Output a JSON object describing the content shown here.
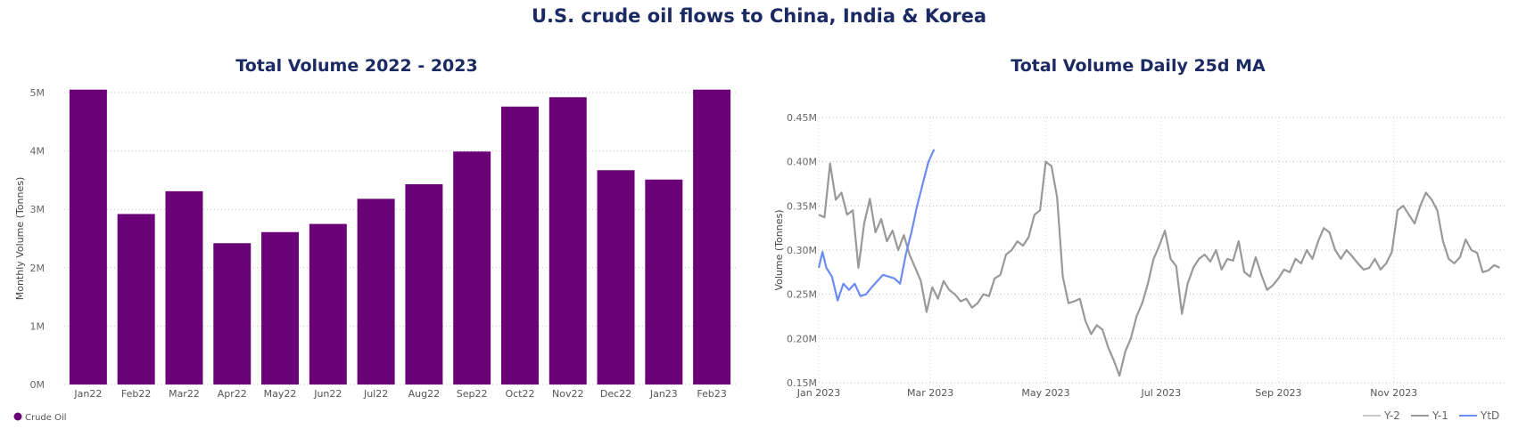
{
  "header": {
    "title": "U.S. crude oil flows to China, India & Korea"
  },
  "chart_data": [
    {
      "type": "bar",
      "title": "Total Volume 2022 - 2023",
      "ylabel": "Monthly Volume (Tonnes)",
      "xlabel": "",
      "categories": [
        "Jan22",
        "Feb22",
        "Mar22",
        "Apr22",
        "May22",
        "Jun22",
        "Jul22",
        "Aug22",
        "Sep22",
        "Oct22",
        "Nov22",
        "Dec22",
        "Jan23",
        "Feb23"
      ],
      "series": [
        {
          "name": "Crude Oil",
          "values": [
            5050000,
            2920000,
            3310000,
            2420000,
            2610000,
            2750000,
            3180000,
            3430000,
            3990000,
            4760000,
            4920000,
            3670000,
            3510000,
            5050000
          ]
        }
      ],
      "ylim": [
        0,
        5000000
      ],
      "yticks": [
        0,
        1000000,
        2000000,
        3000000,
        4000000,
        5000000
      ],
      "ytick_labels": [
        "0M",
        "1M",
        "2M",
        "3M",
        "4M",
        "5M"
      ],
      "grid": true,
      "legend": "bottom-left",
      "colors": {
        "Crude Oil": "#6a0177"
      }
    },
    {
      "type": "line",
      "title": "Total Volume Daily 25d MA",
      "ylabel": "Volume (Tonnes)",
      "xlabel": "",
      "ylim": [
        0.15,
        0.45
      ],
      "yticks": [
        0.15,
        0.2,
        0.25,
        0.3,
        0.35,
        0.4,
        0.45
      ],
      "ytick_labels": [
        "0.15M",
        "0.20M",
        "0.25M",
        "0.30M",
        "0.35M",
        "0.40M",
        "0.45M"
      ],
      "xlim": [
        "2023-01-01",
        "2023-12-31"
      ],
      "xticks": [
        "2023-01-01",
        "2023-03-01",
        "2023-05-01",
        "2023-07-01",
        "2023-09-01",
        "2023-11-01"
      ],
      "xtick_labels": [
        "Jan 2023",
        "Mar 2023",
        "May 2023",
        "Jul 2023",
        "Sep 2023",
        "Nov 2023"
      ],
      "grid": true,
      "legend": "bottom-right",
      "legend_entries": [
        "Y-2",
        "Y-1",
        "YtD"
      ],
      "colors": {
        "Y-2": "#c8c8c8",
        "Y-1": "#999999",
        "YtD": "#6b8cf2"
      },
      "series": [
        {
          "name": "Y-2",
          "points": []
        },
        {
          "name": "Y-1",
          "points": [
            [
              "2023-01-01",
              0.34
            ],
            [
              "2023-01-04",
              0.337
            ],
            [
              "2023-01-07",
              0.398
            ],
            [
              "2023-01-10",
              0.357
            ],
            [
              "2023-01-13",
              0.365
            ],
            [
              "2023-01-16",
              0.34
            ],
            [
              "2023-01-19",
              0.345
            ],
            [
              "2023-01-22",
              0.28
            ],
            [
              "2023-01-25",
              0.33
            ],
            [
              "2023-01-28",
              0.358
            ],
            [
              "2023-01-31",
              0.32
            ],
            [
              "2023-02-03",
              0.335
            ],
            [
              "2023-02-06",
              0.31
            ],
            [
              "2023-02-09",
              0.322
            ],
            [
              "2023-02-12",
              0.3
            ],
            [
              "2023-02-15",
              0.317
            ],
            [
              "2023-02-18",
              0.295
            ],
            [
              "2023-02-21",
              0.28
            ],
            [
              "2023-02-24",
              0.265
            ],
            [
              "2023-02-27",
              0.23
            ],
            [
              "2023-03-02",
              0.258
            ],
            [
              "2023-03-05",
              0.245
            ],
            [
              "2023-03-08",
              0.265
            ],
            [
              "2023-03-11",
              0.255
            ],
            [
              "2023-03-14",
              0.25
            ],
            [
              "2023-03-17",
              0.242
            ],
            [
              "2023-03-20",
              0.245
            ],
            [
              "2023-03-23",
              0.235
            ],
            [
              "2023-03-26",
              0.24
            ],
            [
              "2023-03-29",
              0.25
            ],
            [
              "2023-04-01",
              0.248
            ],
            [
              "2023-04-04",
              0.268
            ],
            [
              "2023-04-07",
              0.272
            ],
            [
              "2023-04-10",
              0.295
            ],
            [
              "2023-04-13",
              0.3
            ],
            [
              "2023-04-16",
              0.31
            ],
            [
              "2023-04-19",
              0.305
            ],
            [
              "2023-04-22",
              0.315
            ],
            [
              "2023-04-25",
              0.34
            ],
            [
              "2023-04-28",
              0.345
            ],
            [
              "2023-05-01",
              0.4
            ],
            [
              "2023-05-04",
              0.395
            ],
            [
              "2023-05-07",
              0.36
            ],
            [
              "2023-05-10",
              0.27
            ],
            [
              "2023-05-13",
              0.24
            ],
            [
              "2023-05-16",
              0.242
            ],
            [
              "2023-05-19",
              0.245
            ],
            [
              "2023-05-22",
              0.22
            ],
            [
              "2023-05-25",
              0.205
            ],
            [
              "2023-05-28",
              0.215
            ],
            [
              "2023-05-31",
              0.21
            ],
            [
              "2023-06-03",
              0.19
            ],
            [
              "2023-06-06",
              0.175
            ],
            [
              "2023-06-09",
              0.158
            ],
            [
              "2023-06-12",
              0.185
            ],
            [
              "2023-06-15",
              0.2
            ],
            [
              "2023-06-18",
              0.225
            ],
            [
              "2023-06-21",
              0.24
            ],
            [
              "2023-06-24",
              0.262
            ],
            [
              "2023-06-27",
              0.29
            ],
            [
              "2023-06-30",
              0.305
            ],
            [
              "2023-07-03",
              0.322
            ],
            [
              "2023-07-06",
              0.29
            ],
            [
              "2023-07-09",
              0.282
            ],
            [
              "2023-07-12",
              0.228
            ],
            [
              "2023-07-15",
              0.262
            ],
            [
              "2023-07-18",
              0.28
            ],
            [
              "2023-07-21",
              0.29
            ],
            [
              "2023-07-24",
              0.295
            ],
            [
              "2023-07-27",
              0.287
            ],
            [
              "2023-07-30",
              0.3
            ],
            [
              "2023-08-02",
              0.278
            ],
            [
              "2023-08-05",
              0.29
            ],
            [
              "2023-08-08",
              0.288
            ],
            [
              "2023-08-11",
              0.31
            ],
            [
              "2023-08-14",
              0.275
            ],
            [
              "2023-08-17",
              0.27
            ],
            [
              "2023-08-20",
              0.292
            ],
            [
              "2023-08-23",
              0.272
            ],
            [
              "2023-08-26",
              0.255
            ],
            [
              "2023-08-29",
              0.26
            ],
            [
              "2023-09-01",
              0.268
            ],
            [
              "2023-09-04",
              0.278
            ],
            [
              "2023-09-07",
              0.275
            ],
            [
              "2023-09-10",
              0.29
            ],
            [
              "2023-09-13",
              0.285
            ],
            [
              "2023-09-16",
              0.3
            ],
            [
              "2023-09-19",
              0.29
            ],
            [
              "2023-09-22",
              0.31
            ],
            [
              "2023-09-25",
              0.325
            ],
            [
              "2023-09-28",
              0.32
            ],
            [
              "2023-10-01",
              0.3
            ],
            [
              "2023-10-04",
              0.29
            ],
            [
              "2023-10-07",
              0.3
            ],
            [
              "2023-10-10",
              0.293
            ],
            [
              "2023-10-13",
              0.285
            ],
            [
              "2023-10-16",
              0.278
            ],
            [
              "2023-10-19",
              0.28
            ],
            [
              "2023-10-22",
              0.29
            ],
            [
              "2023-10-25",
              0.278
            ],
            [
              "2023-10-28",
              0.285
            ],
            [
              "2023-10-31",
              0.298
            ],
            [
              "2023-11-03",
              0.345
            ],
            [
              "2023-11-06",
              0.35
            ],
            [
              "2023-11-09",
              0.34
            ],
            [
              "2023-11-12",
              0.33
            ],
            [
              "2023-11-15",
              0.35
            ],
            [
              "2023-11-18",
              0.365
            ],
            [
              "2023-11-21",
              0.357
            ],
            [
              "2023-11-24",
              0.345
            ],
            [
              "2023-11-27",
              0.31
            ],
            [
              "2023-11-30",
              0.29
            ],
            [
              "2023-12-03",
              0.285
            ],
            [
              "2023-12-06",
              0.292
            ],
            [
              "2023-12-09",
              0.312
            ],
            [
              "2023-12-12",
              0.3
            ],
            [
              "2023-12-15",
              0.297
            ],
            [
              "2023-12-18",
              0.275
            ],
            [
              "2023-12-21",
              0.277
            ],
            [
              "2023-12-24",
              0.283
            ],
            [
              "2023-12-27",
              0.28
            ]
          ]
        },
        {
          "name": "YtD",
          "points": [
            [
              "2023-01-01",
              0.28
            ],
            [
              "2023-01-03",
              0.298
            ],
            [
              "2023-01-05",
              0.28
            ],
            [
              "2023-01-08",
              0.27
            ],
            [
              "2023-01-11",
              0.243
            ],
            [
              "2023-01-14",
              0.262
            ],
            [
              "2023-01-17",
              0.255
            ],
            [
              "2023-01-20",
              0.262
            ],
            [
              "2023-01-23",
              0.248
            ],
            [
              "2023-01-26",
              0.25
            ],
            [
              "2023-01-29",
              0.258
            ],
            [
              "2023-02-01",
              0.265
            ],
            [
              "2023-02-04",
              0.272
            ],
            [
              "2023-02-07",
              0.27
            ],
            [
              "2023-02-10",
              0.268
            ],
            [
              "2023-02-13",
              0.262
            ],
            [
              "2023-02-16",
              0.295
            ],
            [
              "2023-02-19",
              0.32
            ],
            [
              "2023-02-22",
              0.35
            ],
            [
              "2023-02-25",
              0.375
            ],
            [
              "2023-02-28",
              0.4
            ],
            [
              "2023-03-03",
              0.414
            ]
          ]
        }
      ]
    }
  ]
}
